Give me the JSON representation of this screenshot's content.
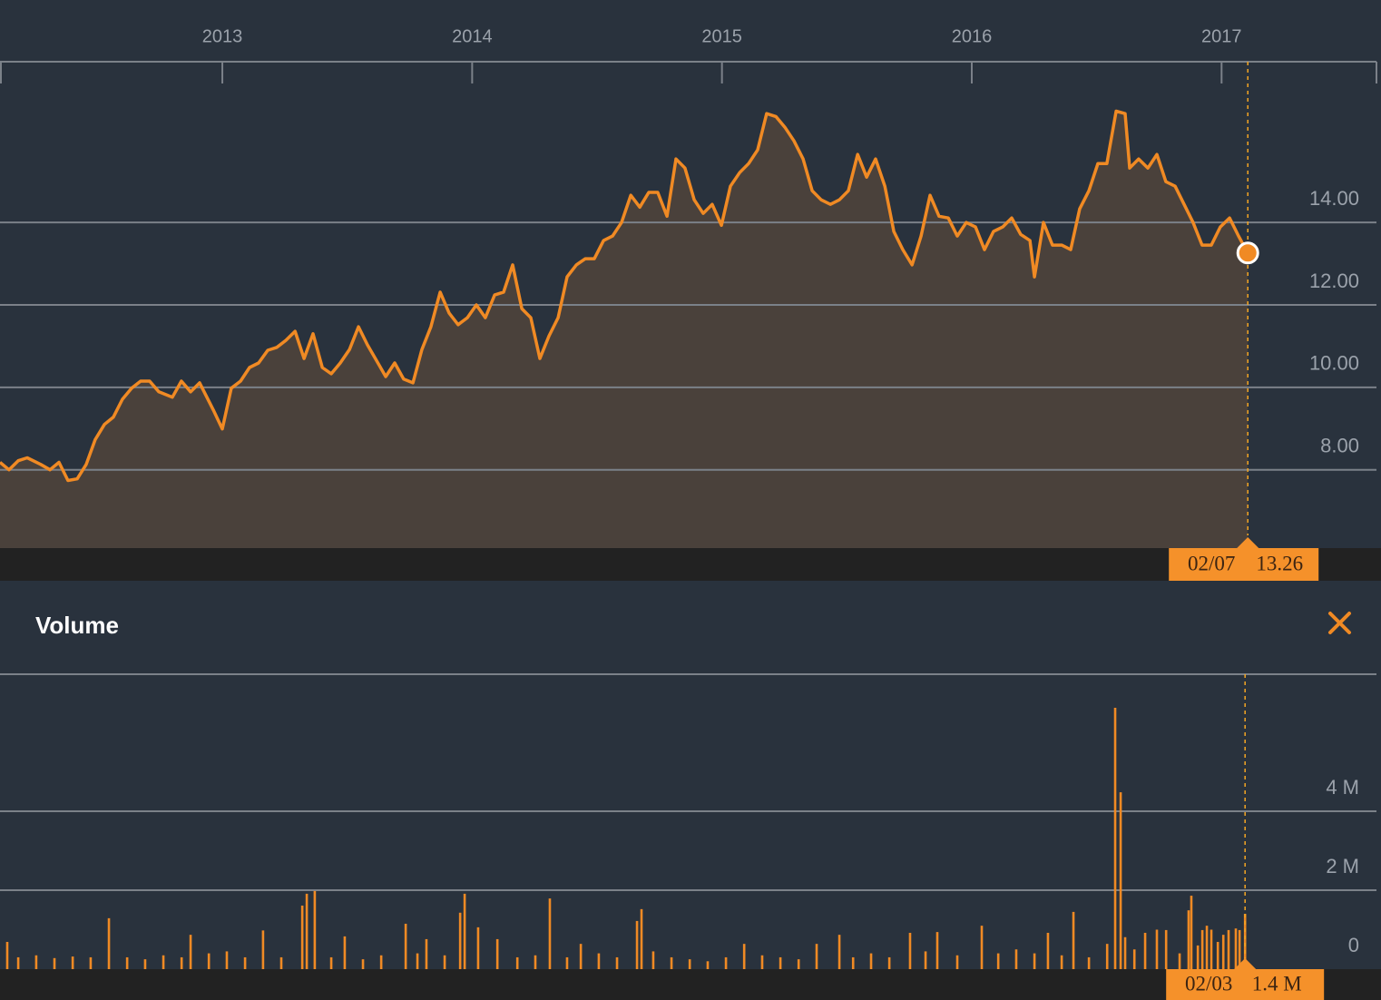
{
  "chart_data": [
    {
      "type": "area",
      "color": "#f08a24",
      "fill": "#4a413b",
      "grid": true,
      "tooltip_date": "02/07",
      "xlim": [
        2012.11,
        2017.62
      ],
      "xticks": [
        2013,
        2014,
        2015,
        2016,
        2017
      ],
      "ylim": [
        6.1,
        17.9
      ],
      "yticks": [
        {
          "value": 8,
          "label": "8.00"
        },
        {
          "value": 10,
          "label": "10.00"
        },
        {
          "value": 12,
          "label": "12.00"
        },
        {
          "value": 14,
          "label": "14.00"
        }
      ],
      "x": [
        2012.11,
        2012.146,
        2012.183,
        2012.219,
        2012.273,
        2012.31,
        2012.346,
        2012.382,
        2012.419,
        2012.455,
        2012.491,
        2012.528,
        2012.564,
        2012.6,
        2012.637,
        2012.673,
        2012.709,
        2012.746,
        2012.8,
        2012.836,
        2012.873,
        2012.909,
        2012.964,
        2013.0,
        2013.036,
        2013.073,
        2013.109,
        2013.145,
        2013.182,
        2013.218,
        2013.254,
        2013.291,
        2013.327,
        2013.363,
        2013.4,
        2013.436,
        2013.472,
        2013.509,
        2013.545,
        2013.581,
        2013.618,
        2013.654,
        2013.69,
        2013.726,
        2013.763,
        2013.799,
        2013.835,
        2013.872,
        2013.908,
        2013.944,
        2013.981,
        2014.017,
        2014.053,
        2014.09,
        2014.126,
        2014.162,
        2014.199,
        2014.235,
        2014.271,
        2014.308,
        2014.344,
        2014.38,
        2014.417,
        2014.453,
        2014.489,
        2014.526,
        2014.562,
        2014.598,
        2014.635,
        2014.671,
        2014.707,
        2014.743,
        2014.78,
        2014.816,
        2014.852,
        2014.889,
        2014.925,
        2014.961,
        2014.998,
        2015.034,
        2015.071,
        2015.107,
        2015.143,
        2015.179,
        2015.216,
        2015.252,
        2015.288,
        2015.325,
        2015.361,
        2015.397,
        2015.434,
        2015.47,
        2015.506,
        2015.543,
        2015.579,
        2015.615,
        2015.652,
        2015.688,
        2015.724,
        2015.761,
        2015.797,
        2015.833,
        2015.869,
        2015.906,
        2015.942,
        2015.978,
        2016.015,
        2016.051,
        2016.087,
        2016.124,
        2016.16,
        2016.196,
        2016.233,
        2016.251,
        2016.287,
        2016.323,
        2016.36,
        2016.396,
        2016.432,
        2016.469,
        2016.505,
        2016.541,
        2016.578,
        2016.614,
        2016.632,
        2016.668,
        2016.705,
        2016.741,
        2016.777,
        2016.814,
        2016.85,
        2016.886,
        2016.922,
        2016.959,
        2016.995,
        2017.032,
        2017.068,
        2017.105
      ],
      "values": [
        8.18,
        8.0,
        8.22,
        8.29,
        8.13,
        8.0,
        8.18,
        7.74,
        7.78,
        8.13,
        8.73,
        9.1,
        9.28,
        9.71,
        9.98,
        10.15,
        10.15,
        9.89,
        9.76,
        10.15,
        9.89,
        10.11,
        9.45,
        8.99,
        9.98,
        10.15,
        10.48,
        10.59,
        10.9,
        10.97,
        11.14,
        11.36,
        10.7,
        11.3,
        10.48,
        10.33,
        10.59,
        10.92,
        11.47,
        11.03,
        10.64,
        10.26,
        10.59,
        10.2,
        10.11,
        10.92,
        11.47,
        12.31,
        11.8,
        11.52,
        11.69,
        12.0,
        11.69,
        12.24,
        12.31,
        12.97,
        11.91,
        11.69,
        10.7,
        11.25,
        11.69,
        12.68,
        12.97,
        13.12,
        13.12,
        13.56,
        13.67,
        14.0,
        14.66,
        14.37,
        14.73,
        14.73,
        14.15,
        15.54,
        15.32,
        14.55,
        14.22,
        14.44,
        13.93,
        14.88,
        15.21,
        15.43,
        15.76,
        16.64,
        16.57,
        16.31,
        15.98,
        15.54,
        14.77,
        14.55,
        14.44,
        14.55,
        14.77,
        15.65,
        15.1,
        15.54,
        14.88,
        13.78,
        13.34,
        12.97,
        13.67,
        14.66,
        14.15,
        14.11,
        13.67,
        14.0,
        13.89,
        13.34,
        13.78,
        13.89,
        14.11,
        13.71,
        13.56,
        12.68,
        14.0,
        13.45,
        13.45,
        13.34,
        14.33,
        14.77,
        15.43,
        15.43,
        16.7,
        16.64,
        15.32,
        15.54,
        15.32,
        15.65,
        14.99,
        14.88,
        14.44,
        14.0,
        13.45,
        13.45,
        13.89,
        14.11,
        13.67,
        13.26
      ]
    },
    {
      "type": "bar",
      "title": "Volume",
      "color": "#f08a24",
      "grid": true,
      "tooltip_date": "02/03",
      "xlim": [
        2012.11,
        2017.62
      ],
      "ylim": [
        0,
        7470000
      ],
      "yticks": [
        0,
        {
          "value": 2000000,
          "label": "2 M"
        },
        {
          "value": 4000000,
          "label": "4 M"
        }
      ],
      "x": [
        2012.139,
        2012.183,
        2012.255,
        2012.328,
        2012.401,
        2012.473,
        2012.546,
        2012.619,
        2012.691,
        2012.764,
        2012.837,
        2012.873,
        2012.946,
        2013.018,
        2013.091,
        2013.163,
        2013.236,
        2013.32,
        2013.338,
        2013.37,
        2013.436,
        2013.49,
        2013.563,
        2013.636,
        2013.734,
        2013.781,
        2013.817,
        2013.89,
        2013.952,
        2013.97,
        2014.024,
        2014.101,
        2014.181,
        2014.253,
        2014.311,
        2014.38,
        2014.435,
        2014.507,
        2014.58,
        2014.66,
        2014.678,
        2014.725,
        2014.798,
        2014.871,
        2014.943,
        2015.016,
        2015.089,
        2015.161,
        2015.234,
        2015.307,
        2015.379,
        2015.47,
        2015.525,
        2015.597,
        2015.67,
        2015.753,
        2015.815,
        2015.862,
        2015.942,
        2016.04,
        2016.106,
        2016.178,
        2016.251,
        2016.305,
        2016.36,
        2016.407,
        2016.469,
        2016.542,
        2016.574,
        2016.596,
        2016.614,
        2016.651,
        2016.694,
        2016.741,
        2016.778,
        2016.832,
        2016.868,
        2016.879,
        2016.905,
        2016.923,
        2016.941,
        2016.959,
        2016.985,
        2017.007,
        2017.028,
        2017.057,
        2017.072,
        2017.094
      ],
      "values": [
        690000,
        300000,
        350000,
        280000,
        320000,
        300000,
        1290000,
        300000,
        250000,
        350000,
        300000,
        870000,
        400000,
        450000,
        300000,
        980000,
        300000,
        1610000,
        1910000,
        1980000,
        300000,
        830000,
        250000,
        350000,
        1150000,
        400000,
        760000,
        350000,
        1430000,
        1910000,
        1060000,
        760000,
        300000,
        350000,
        1790000,
        300000,
        640000,
        400000,
        300000,
        1220000,
        1520000,
        450000,
        300000,
        250000,
        200000,
        300000,
        640000,
        350000,
        300000,
        250000,
        640000,
        870000,
        300000,
        400000,
        300000,
        920000,
        450000,
        940000,
        350000,
        1100000,
        400000,
        500000,
        400000,
        920000,
        350000,
        1450000,
        300000,
        640000,
        6620000,
        4480000,
        810000,
        500000,
        920000,
        1000000,
        990000,
        400000,
        1490000,
        1860000,
        600000,
        990000,
        1100000,
        1000000,
        690000,
        870000,
        990000,
        1030000,
        990000,
        1400000
      ],
      "value_labels": [
        null,
        null,
        null,
        null,
        null,
        null,
        null,
        null,
        null,
        null,
        null,
        null,
        null,
        null,
        null,
        null,
        null,
        null,
        null,
        null,
        null,
        null,
        null,
        null,
        null,
        null,
        null,
        null,
        null,
        null,
        null,
        null,
        null,
        null,
        null,
        null,
        null,
        null,
        null,
        null,
        null,
        null,
        null,
        null,
        null,
        null,
        null,
        null,
        null,
        null,
        null,
        null,
        null,
        null,
        null,
        null,
        null,
        null,
        null,
        null,
        null,
        null,
        null,
        null,
        null,
        null,
        null,
        null,
        null,
        null,
        null,
        null,
        null,
        null,
        null,
        null,
        null,
        null,
        null,
        null,
        null,
        null,
        null,
        null,
        null,
        null,
        null,
        "1.4 M"
      ]
    }
  ]
}
